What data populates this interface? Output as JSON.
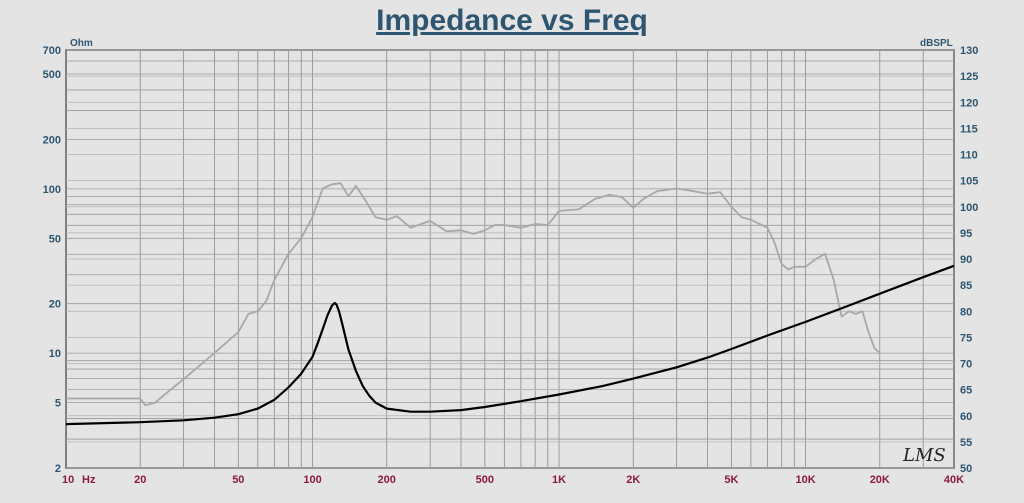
{
  "title": "Impedance vs Freq",
  "left_unit": "Ohm",
  "right_unit": "dBSPL",
  "x_unit": "Hz",
  "signature": "LMS",
  "chart_data": {
    "type": "line",
    "title": "Impedance vs Freq",
    "x_scale": "log",
    "xlim": [
      10,
      40000
    ],
    "y_left_scale": "log",
    "y_left_lim": [
      2,
      700
    ],
    "y_right_lim": [
      50,
      130
    ],
    "x_ticks": [
      10,
      20,
      50,
      100,
      200,
      500,
      1000,
      2000,
      5000,
      10000,
      20000,
      40000
    ],
    "x_tick_labels": [
      "10",
      "20",
      "50",
      "100",
      "200",
      "500",
      "1K",
      "2K",
      "5K",
      "10K",
      "20K",
      "40K"
    ],
    "y_left_ticks": [
      2,
      5,
      10,
      20,
      50,
      100,
      200,
      500,
      700
    ],
    "y_left_tick_labels": [
      "2",
      "5",
      "10",
      "20",
      "50",
      "100",
      "200",
      "500",
      "700"
    ],
    "y_right_ticks": [
      50,
      55,
      60,
      65,
      70,
      75,
      80,
      85,
      90,
      95,
      100,
      105,
      110,
      115,
      120,
      125,
      130
    ],
    "y_right_tick_labels": [
      "50",
      "55",
      "60",
      "65",
      "70",
      "75",
      "80",
      "85",
      "90",
      "95",
      "100",
      "105",
      "110",
      "115",
      "120",
      "125",
      "130"
    ],
    "grid": true,
    "series": [
      {
        "axis": "left",
        "color": "#000000",
        "x": [
          10,
          20,
          30,
          40,
          50,
          60,
          70,
          80,
          90,
          100,
          105,
          110,
          115,
          120,
          123,
          125,
          128,
          132,
          140,
          150,
          160,
          170,
          180,
          200,
          250,
          300,
          400,
          500,
          700,
          1000,
          1500,
          2000,
          3000,
          4000,
          5000,
          7000,
          10000,
          15000,
          20000,
          30000,
          40000
        ],
        "y": [
          3.7,
          3.8,
          3.9,
          4.05,
          4.25,
          4.6,
          5.2,
          6.2,
          7.5,
          9.5,
          11.5,
          14,
          17,
          19.5,
          20.2,
          19.8,
          18,
          15,
          10.5,
          7.8,
          6.3,
          5.5,
          5.0,
          4.6,
          4.4,
          4.4,
          4.5,
          4.7,
          5.1,
          5.6,
          6.3,
          7.0,
          8.2,
          9.4,
          10.6,
          12.8,
          15.5,
          19.5,
          23,
          29,
          34
        ]
      },
      {
        "axis": "right",
        "color": "#a8a8a8",
        "x": [
          10,
          20,
          21,
          23,
          25,
          30,
          40,
          50,
          55,
          60,
          65,
          70,
          80,
          90,
          100,
          110,
          120,
          130,
          140,
          150,
          165,
          180,
          200,
          220,
          250,
          300,
          350,
          400,
          450,
          500,
          550,
          600,
          700,
          800,
          900,
          1000,
          1200,
          1400,
          1600,
          1800,
          2000,
          2200,
          2500,
          3000,
          3500,
          4000,
          4500,
          5000,
          5500,
          6000,
          7000,
          7500,
          8000,
          8500,
          9000,
          10000,
          11000,
          12000,
          13000,
          14000,
          15000,
          16000,
          17000,
          18000,
          19000,
          20000
        ],
        "y": [
          63.3,
          63.3,
          62,
          62.5,
          64,
          67,
          72,
          76,
          79.5,
          80,
          82,
          86,
          91,
          94,
          98,
          103.5,
          104.3,
          104.5,
          102,
          104,
          101,
          98,
          97.5,
          98.2,
          96,
          97.3,
          95.3,
          95.5,
          94.8,
          95.5,
          96.5,
          96.5,
          96,
          96.7,
          96.5,
          99.2,
          99.5,
          101.5,
          102.3,
          101.8,
          99.8,
          101.5,
          103,
          103.5,
          103,
          102.5,
          102.8,
          100,
          98,
          97.5,
          96,
          93,
          89,
          88,
          88.5,
          88.5,
          90,
          91,
          86,
          79,
          80,
          79.5,
          80,
          76,
          73,
          72
        ]
      }
    ]
  }
}
